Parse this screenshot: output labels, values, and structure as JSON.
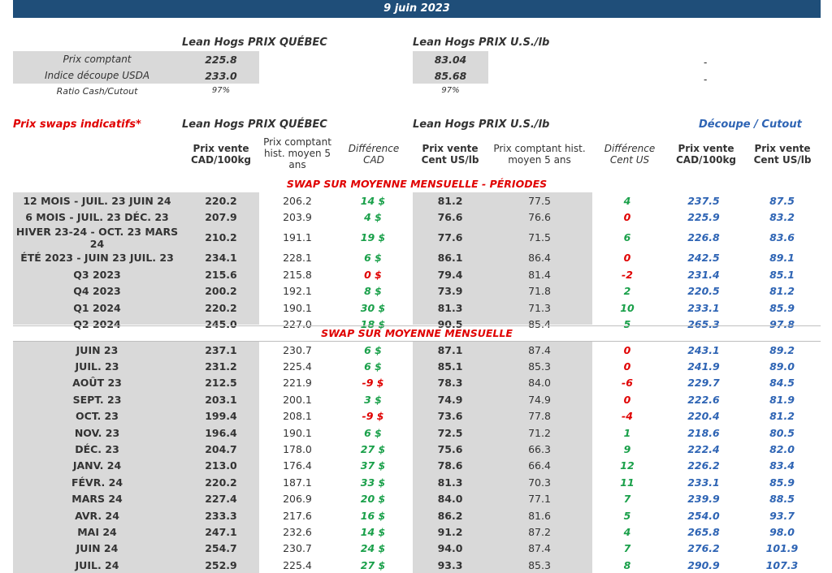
{
  "banner": "9 juin 2023",
  "top": {
    "quebec_header": "Lean Hogs PRIX QUÉBEC",
    "us_header": "Lean Hogs PRIX U.S./lb",
    "row1_label": "Prix comptant",
    "row2_label": "Indice découpe USDA",
    "row3_label": "Ratio Cash/Cutout",
    "qc_cash": "225.8",
    "qc_cutout": "233.0",
    "qc_ratio": "97%",
    "us_cash": "83.04",
    "us_cutout": "85.68",
    "us_ratio": "97%",
    "dash1": "-",
    "dash2": "-"
  },
  "swaps": {
    "title": "Prix swaps indicatifs*",
    "quebec_header": "Lean Hogs PRIX QUÉBEC",
    "us_header": "Lean Hogs PRIX U.S./lb",
    "cutout_header": "Découpe / Cutout",
    "columns": {
      "qc_price": "Prix vente CAD/100kg",
      "qc_hist": "Prix comptant hist. moyen 5 ans",
      "qc_diff": "Différence CAD",
      "us_price": "Prix vente Cent US/lb",
      "us_hist": "Prix comptant hist. moyen 5 ans",
      "us_diff": "Différence Cent US",
      "cut_cad": "Prix vente CAD/100kg",
      "cut_us": "Prix vente Cent US/lb"
    },
    "section1": "SWAP SUR MOYENNE MENSUELLE - PÉRIODES",
    "section2": "SWAP SUR MOYENNE MENSUELLE",
    "periods": [
      [
        "12 MOIS - JUIL. 23 JUIN 24",
        "220.2",
        "206.2",
        "14 $",
        "81.2",
        "77.5",
        "4",
        "237.5",
        "87.5"
      ],
      [
        "6 MOIS - JUIL. 23 DÉC. 23",
        "207.9",
        "203.9",
        "4 $",
        "76.6",
        "76.6",
        "0",
        "225.9",
        "83.2"
      ],
      [
        "HIVER 23-24 -  OCT. 23 MARS 24",
        "210.2",
        "191.1",
        "19 $",
        "77.6",
        "71.5",
        "6",
        "226.8",
        "83.6"
      ],
      [
        "ÉTÉ 2023 - JUIN 23 JUIL. 23",
        "234.1",
        "228.1",
        "6 $",
        "86.1",
        "86.4",
        "0",
        "242.5",
        "89.1"
      ],
      [
        "Q3 2023",
        "215.6",
        "215.8",
        "0 $",
        "79.4",
        "81.4",
        "-2",
        "231.4",
        "85.1"
      ],
      [
        "Q4 2023",
        "200.2",
        "192.1",
        "8 $",
        "73.9",
        "71.8",
        "2",
        "220.5",
        "81.2"
      ],
      [
        "Q1 2024",
        "220.2",
        "190.1",
        "30 $",
        "81.3",
        "71.3",
        "10",
        "233.1",
        "85.9"
      ],
      [
        "Q2 2024",
        "245.0",
        "227.0",
        "18 $",
        "90.5",
        "85.4",
        "5",
        "265.3",
        "97.8"
      ]
    ],
    "months": [
      [
        "JUIN 23",
        "237.1",
        "230.7",
        "6 $",
        "87.1",
        "87.4",
        "0",
        "243.1",
        "89.2"
      ],
      [
        "JUIL. 23",
        "231.2",
        "225.4",
        "6 $",
        "85.1",
        "85.3",
        "0",
        "241.9",
        "89.0"
      ],
      [
        "AOÛT 23",
        "212.5",
        "221.9",
        "-9 $",
        "78.3",
        "84.0",
        "-6",
        "229.7",
        "84.5"
      ],
      [
        "SEPT. 23",
        "203.1",
        "200.1",
        "3 $",
        "74.9",
        "74.9",
        "0",
        "222.6",
        "81.9"
      ],
      [
        "OCT. 23",
        "199.4",
        "208.1",
        "-9 $",
        "73.6",
        "77.8",
        "-4",
        "220.4",
        "81.2"
      ],
      [
        "NOV. 23",
        "196.4",
        "190.1",
        "6 $",
        "72.5",
        "71.2",
        "1",
        "218.6",
        "80.5"
      ],
      [
        "DÉC. 23",
        "204.7",
        "178.0",
        "27 $",
        "75.6",
        "66.3",
        "9",
        "222.4",
        "82.0"
      ],
      [
        "JANV. 24",
        "213.0",
        "176.4",
        "37 $",
        "78.6",
        "66.4",
        "12",
        "226.2",
        "83.4"
      ],
      [
        "FÉVR. 24",
        "220.2",
        "187.1",
        "33 $",
        "81.3",
        "70.3",
        "11",
        "233.1",
        "85.9"
      ],
      [
        "MARS 24",
        "227.4",
        "206.9",
        "20 $",
        "84.0",
        "77.1",
        "7",
        "239.9",
        "88.5"
      ],
      [
        "AVR. 24",
        "233.3",
        "217.6",
        "16 $",
        "86.2",
        "81.6",
        "5",
        "254.0",
        "93.7"
      ],
      [
        "MAI 24",
        "247.1",
        "232.6",
        "14 $",
        "91.2",
        "87.2",
        "4",
        "265.8",
        "98.0"
      ],
      [
        "JUIN 24",
        "254.7",
        "230.7",
        "24 $",
        "94.0",
        "87.4",
        "7",
        "276.2",
        "101.9"
      ],
      [
        "JUIL. 24",
        "252.9",
        "225.4",
        "27 $",
        "93.3",
        "85.3",
        "8",
        "290.9",
        "107.3"
      ]
    ]
  }
}
